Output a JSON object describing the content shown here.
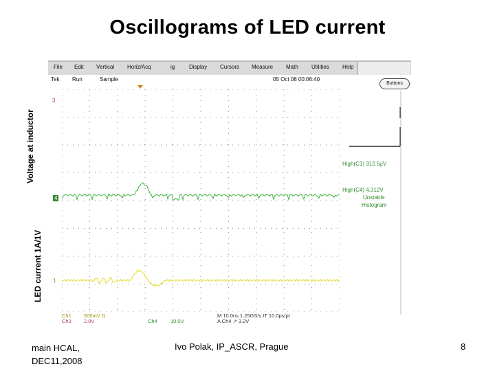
{
  "slide": {
    "title": "Oscillograms of LED current",
    "ylabel_top": "Voltage at inductor",
    "ylabel_bottom": "LED current 1A/1V",
    "footer_left": "main HCAL,\nDEC11,2008",
    "footer_center": "Ivo Polak, IP_ASCR, Prague",
    "page_number": "8"
  },
  "scope": {
    "menu": [
      "File",
      "Edit",
      "Vertical",
      "Horiz/Acq",
      "ig",
      "Display",
      "Cursors",
      "Measure",
      "Math",
      "Utilities",
      "Help"
    ],
    "status_left": "Tek",
    "status_mode": "Run",
    "status_acq": "Sample",
    "status_time": "05 Oct 08 00:06:40",
    "button_label": "Buttons",
    "ch_marker_top": "3",
    "ch_marker_mid": "4",
    "ch_marker_bot": "1",
    "high1": "High(C1)  312.5μV",
    "high2": "High(C4)  4.312V",
    "unstable_line1": "Unstable",
    "unstable_line2": "Histogram",
    "ch1_scale": "500mV  Ω",
    "ch3_scale": "2.0V",
    "ch4_label": "Ch4",
    "ch4_scale": "10.0V",
    "timebase": "M 10.0ns 1.25GS/s  IT 10.0ps/pt",
    "trigger": "A Ch4  ↗  3.2V",
    "ch1_label": "Ch1",
    "ch3_label": "Ch3",
    "colors": {
      "ch4_trace": "#3db33d",
      "ch1_trace": "#e8e04a",
      "grid": "#777777",
      "ch_label_green": "#2e8b2e",
      "ch_label_yellow": "#9a8e00",
      "menu_bg": "#dadada"
    }
  }
}
